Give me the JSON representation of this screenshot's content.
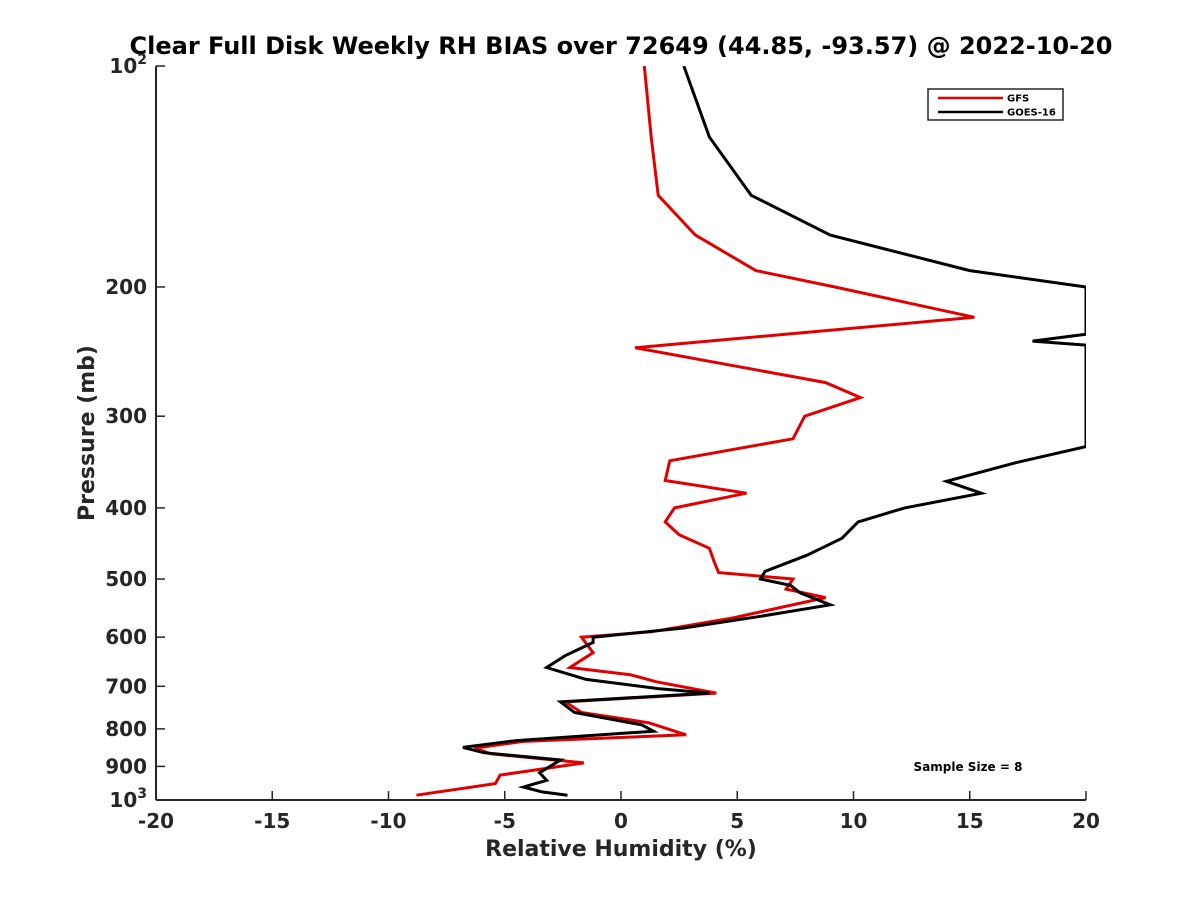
{
  "chart_data": {
    "type": "line",
    "title": "Clear Full Disk Weekly RH BIAS over 72649 (44.85, -93.57) @ 2022-10-20",
    "xlabel": "Relative Humidity (%)",
    "ylabel": "Pressure (mb)",
    "xlim": [
      -20,
      20
    ],
    "ylim": [
      100,
      1000
    ],
    "y_scale": "log",
    "y_reversed": true,
    "grid": false,
    "legend_position": "top-right",
    "x_ticks": [
      "-20",
      "-15",
      "-10",
      "-5",
      "0",
      "5",
      "10",
      "15",
      "20"
    ],
    "y_ticks": [
      {
        "value": 100,
        "base": "10",
        "exp": "2"
      },
      {
        "value": 200,
        "label": "200"
      },
      {
        "value": 300,
        "label": "300"
      },
      {
        "value": 400,
        "label": "400"
      },
      {
        "value": 500,
        "label": "500"
      },
      {
        "value": 600,
        "label": "600"
      },
      {
        "value": 700,
        "label": "700"
      },
      {
        "value": 800,
        "label": "800"
      },
      {
        "value": 900,
        "label": "900"
      },
      {
        "value": 1000,
        "base": "10",
        "exp": "3"
      }
    ],
    "series": [
      {
        "name": "GFS",
        "color": "#e00000",
        "points": [
          [
            1.0,
            100
          ],
          [
            1.3,
            125
          ],
          [
            1.6,
            150
          ],
          [
            3.2,
            170
          ],
          [
            5.8,
            190
          ],
          [
            9.2,
            200
          ],
          [
            15.2,
            220
          ],
          [
            0.6,
            242
          ],
          [
            8.8,
            270
          ],
          [
            10.3,
            283
          ],
          [
            7.9,
            300
          ],
          [
            7.4,
            322
          ],
          [
            2.1,
            345
          ],
          [
            1.9,
            367
          ],
          [
            5.4,
            382
          ],
          [
            2.3,
            400
          ],
          [
            1.9,
            418
          ],
          [
            2.5,
            435
          ],
          [
            3.8,
            454
          ],
          [
            4.0,
            473
          ],
          [
            4.2,
            490
          ],
          [
            7.4,
            500
          ],
          [
            7.1,
            516
          ],
          [
            8.8,
            530
          ],
          [
            4.8,
            565
          ],
          [
            1.3,
            590
          ],
          [
            -1.7,
            600
          ],
          [
            -1.2,
            630
          ],
          [
            -2.2,
            660
          ],
          [
            0.4,
            675
          ],
          [
            1.5,
            690
          ],
          [
            4.1,
            715
          ],
          [
            -2.4,
            735
          ],
          [
            -1.7,
            760
          ],
          [
            1.2,
            785
          ],
          [
            2.8,
            815
          ],
          [
            -4.2,
            832
          ],
          [
            -6.3,
            850
          ],
          [
            -5.6,
            865
          ],
          [
            -1.6,
            890
          ],
          [
            -5.2,
            925
          ],
          [
            -5.4,
            950
          ],
          [
            -8.8,
            985
          ]
        ]
      },
      {
        "name": "GOES-16",
        "color": "#000000",
        "points": [
          [
            2.7,
            100
          ],
          [
            3.8,
            125
          ],
          [
            5.6,
            150
          ],
          [
            9.0,
            170
          ],
          [
            15.0,
            190
          ],
          [
            20.0,
            200
          ],
          [
            20.0,
            232
          ],
          [
            17.7,
            237
          ],
          [
            20.0,
            240
          ],
          [
            20.0,
            330
          ],
          [
            17.0,
            347
          ],
          [
            14.0,
            368
          ],
          [
            15.5,
            382
          ],
          [
            12.2,
            400
          ],
          [
            10.2,
            418
          ],
          [
            9.5,
            440
          ],
          [
            8.0,
            464
          ],
          [
            6.2,
            488
          ],
          [
            6.0,
            500
          ],
          [
            7.3,
            510
          ],
          [
            7.7,
            522
          ],
          [
            9.0,
            542
          ],
          [
            6.0,
            562
          ],
          [
            2.7,
            583
          ],
          [
            -1.2,
            600
          ],
          [
            -1.2,
            610
          ],
          [
            -2.4,
            636
          ],
          [
            -3.2,
            660
          ],
          [
            -1.5,
            685
          ],
          [
            1.6,
            705
          ],
          [
            3.8,
            715
          ],
          [
            -2.6,
            735
          ],
          [
            -2.0,
            760
          ],
          [
            0.9,
            790
          ],
          [
            1.4,
            806
          ],
          [
            -4.5,
            830
          ],
          [
            -6.8,
            848
          ],
          [
            -5.9,
            862
          ],
          [
            -2.6,
            882
          ],
          [
            -3.5,
            918
          ],
          [
            -3.2,
            940
          ],
          [
            -4.2,
            960
          ],
          [
            -3.4,
            975
          ],
          [
            -2.3,
            985
          ]
        ]
      }
    ],
    "annotation": "Sample Size = 8"
  }
}
